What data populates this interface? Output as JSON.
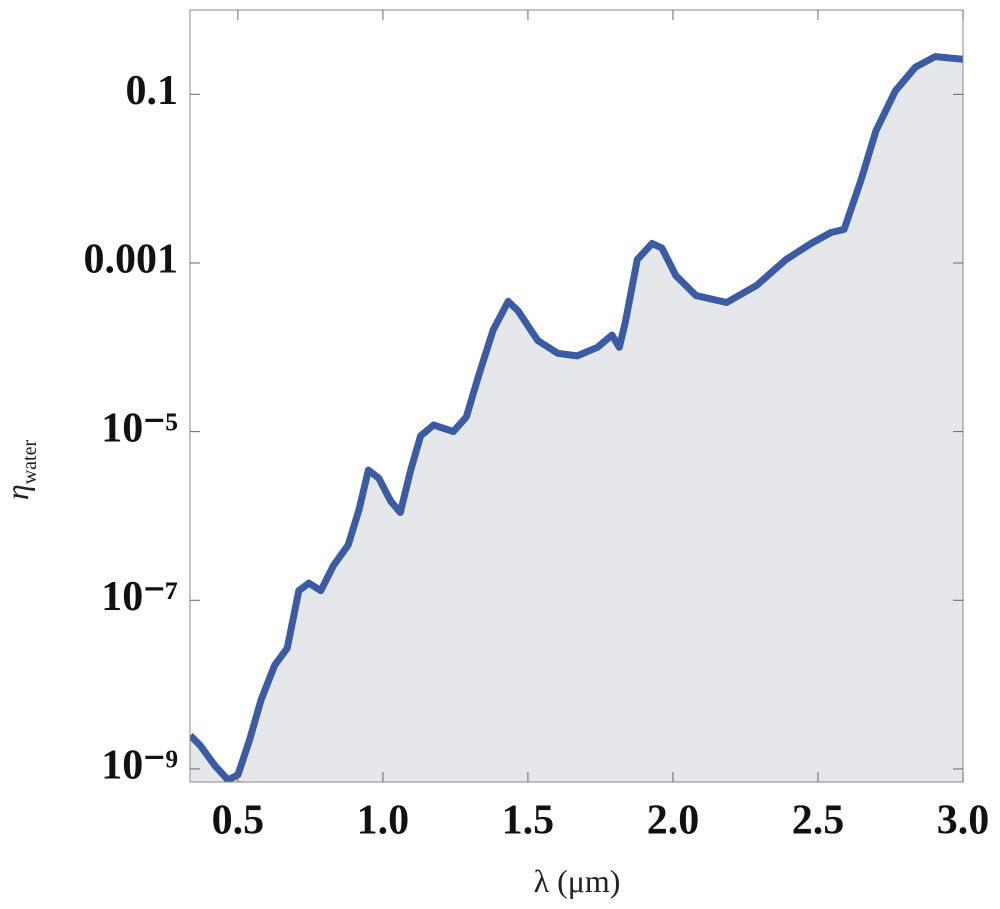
{
  "chart_data": {
    "type": "area-line",
    "x_label": "λ (μm)",
    "y_label": {
      "symbol": "η",
      "subscript": "water"
    },
    "log_y": true,
    "color": "#3b5ba3",
    "fill": "#e6e7ea",
    "xlim": [
      0.335,
      3.0
    ],
    "xticks": [
      {
        "value": 0.5,
        "label": "0.5"
      },
      {
        "value": 1.0,
        "label": "1.0"
      },
      1.5,
      {
        "value": 2.0,
        "label": "2.0"
      },
      2.5,
      {
        "value": 3.0,
        "label": "3.0"
      }
    ],
    "ylim": [
      7e-10,
      1
    ],
    "yticks": [
      {
        "value": 1e-09,
        "label": "10⁻⁹"
      },
      {
        "value": 1e-07,
        "label": "10⁻⁷"
      },
      {
        "value": 1e-05,
        "label": "10⁻⁵"
      },
      0.001,
      0.1
    ],
    "x": [
      0.336,
      0.37,
      0.42,
      0.466,
      0.5,
      0.54,
      0.58,
      0.627,
      0.67,
      0.71,
      0.745,
      0.786,
      0.83,
      0.88,
      0.918,
      0.95,
      0.986,
      1.027,
      1.06,
      1.096,
      1.13,
      1.175,
      1.243,
      1.288,
      1.33,
      1.38,
      1.432,
      1.466,
      1.534,
      1.603,
      1.67,
      1.74,
      1.79,
      1.815,
      1.836,
      1.877,
      1.928,
      1.962,
      2.01,
      2.08,
      2.185,
      2.288,
      2.39,
      2.476,
      2.545,
      2.59,
      2.647,
      2.7,
      2.767,
      2.836,
      2.904,
      3.0
    ],
    "values": [
      2.5e-09,
      1.9e-09,
      1.1e-09,
      7.4e-10,
      8.5e-10,
      2.2e-09,
      6.6e-09,
      1.7e-08,
      2.7e-08,
      1.3e-07,
      1.6e-07,
      1.3e-07,
      2.6e-07,
      4.5e-07,
      1.2e-06,
      3.5e-06,
      2.8e-06,
      1.5e-06,
      1.1e-06,
      3.5e-06,
      8.9e-06,
      1.2e-05,
      1e-05,
      1.5e-05,
      4.6e-05,
      0.00016,
      0.00035,
      0.00027,
      0.00012,
      8.5e-05,
      7.9e-05,
      0.0001,
      0.00014,
      0.0001,
      0.0002,
      0.0011,
      0.0017,
      0.0015,
      0.00071,
      0.00041,
      0.00034,
      0.00054,
      0.0011,
      0.0017,
      0.0023,
      0.0025,
      0.0093,
      0.037,
      0.11,
      0.21,
      0.28,
      0.26
    ]
  }
}
